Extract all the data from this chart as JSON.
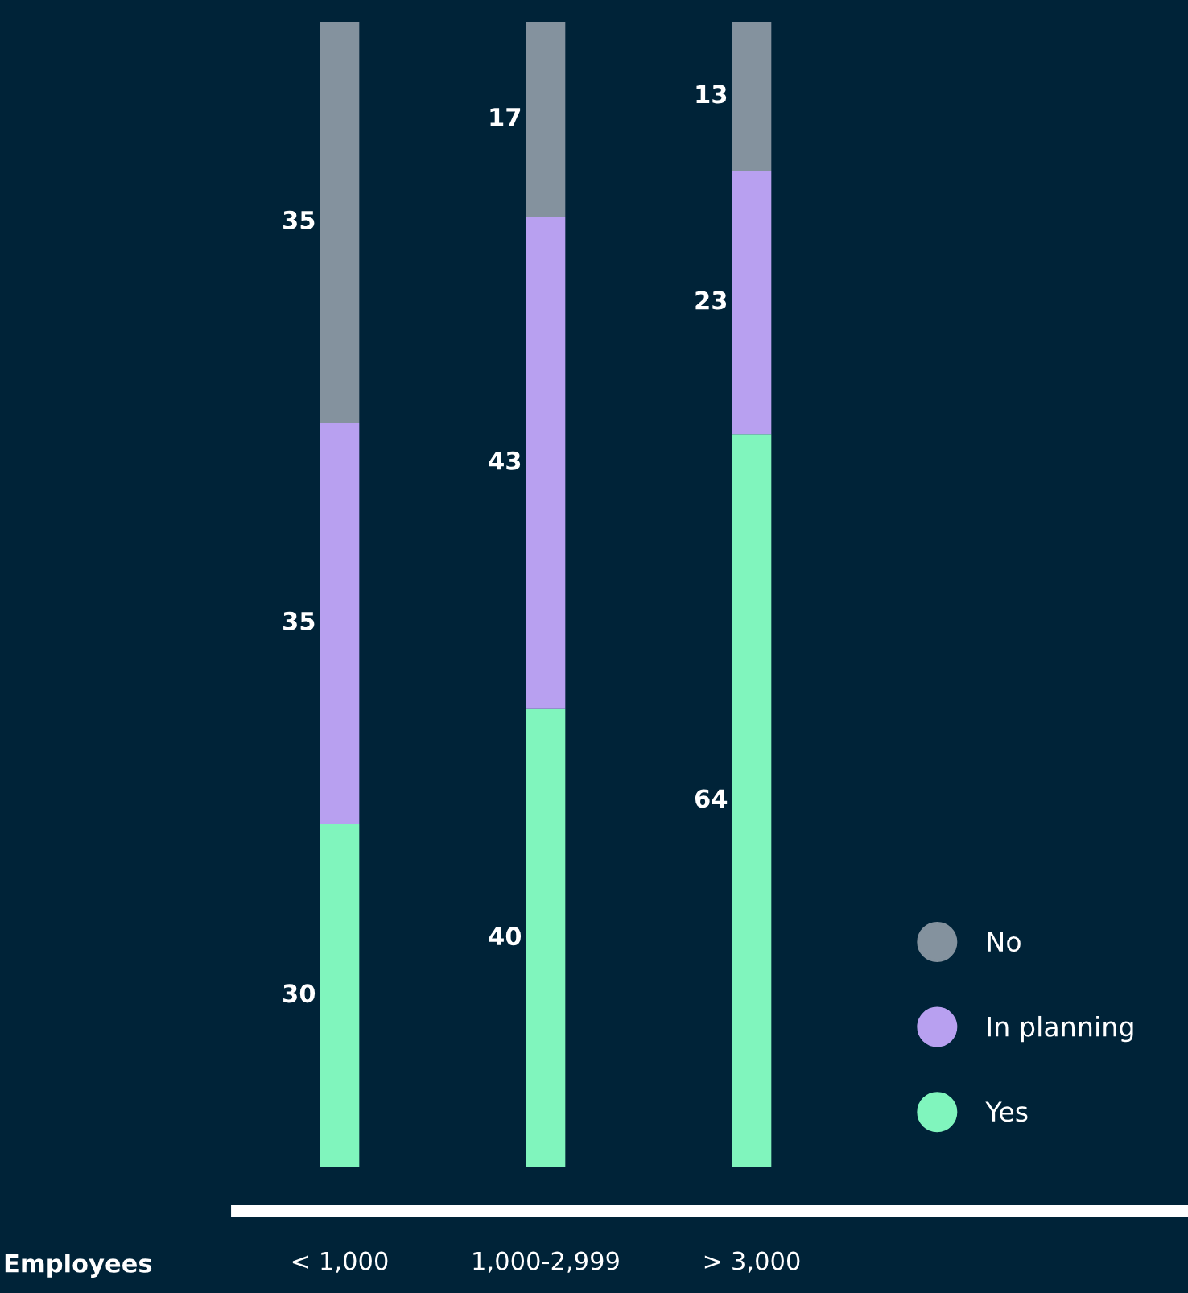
{
  "chart_data": {
    "type": "bar",
    "stacked": true,
    "xlabel": "Employees",
    "categories": [
      "< 1,000",
      "1,000-2,999",
      "> 3,000"
    ],
    "series": [
      {
        "name": "Yes",
        "color": "#80f5bd",
        "values": [
          30,
          40,
          64
        ]
      },
      {
        "name": "In planning",
        "color": "#b8a0f0",
        "values": [
          35,
          43,
          23
        ]
      },
      {
        "name": "No",
        "color": "#84929e",
        "values": [
          35,
          17,
          13
        ]
      }
    ],
    "data_labels": true,
    "legend": "bottom right",
    "grid": false,
    "tick_labels": "x"
  }
}
